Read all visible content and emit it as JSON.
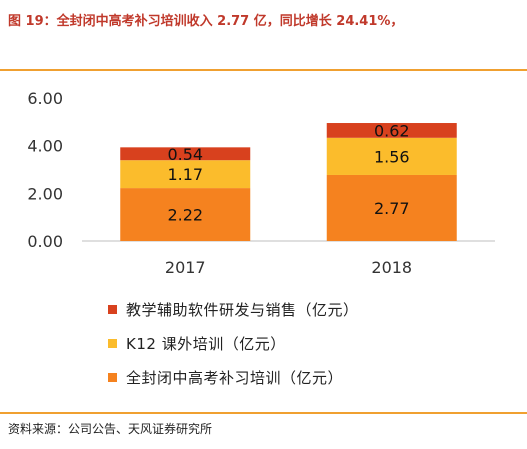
{
  "figure": {
    "title": "图 19：全封闭中高考补习培训收入 2.77 亿，同比增长 24.41%，",
    "source": "资料来源：公司公告、天风证券研究所"
  },
  "colors": {
    "rule": "#f0a030",
    "series": [
      "#f5821f",
      "#fbbc2c",
      "#d8411e"
    ]
  },
  "chart_data": {
    "type": "bar",
    "stacked": true,
    "categories": [
      "2017",
      "2018"
    ],
    "series": [
      {
        "name": "全封闭中高考补习培训（亿元）",
        "values": [
          2.22,
          2.77
        ],
        "value_labels": [
          "2.22",
          "2.77"
        ]
      },
      {
        "name": "K12 课外培训（亿元）",
        "values": [
          1.17,
          1.56
        ],
        "value_labels": [
          "1.17",
          "1.56"
        ]
      },
      {
        "name": "教学辅助软件研发与销售（亿元）",
        "values": [
          0.54,
          0.62
        ],
        "value_labels": [
          "0.54",
          "0.62"
        ]
      }
    ],
    "ylim": [
      0,
      6
    ],
    "yticks": [
      "0.00",
      "2.00",
      "4.00",
      "6.00"
    ],
    "grid": false,
    "legend_position": "bottom"
  }
}
